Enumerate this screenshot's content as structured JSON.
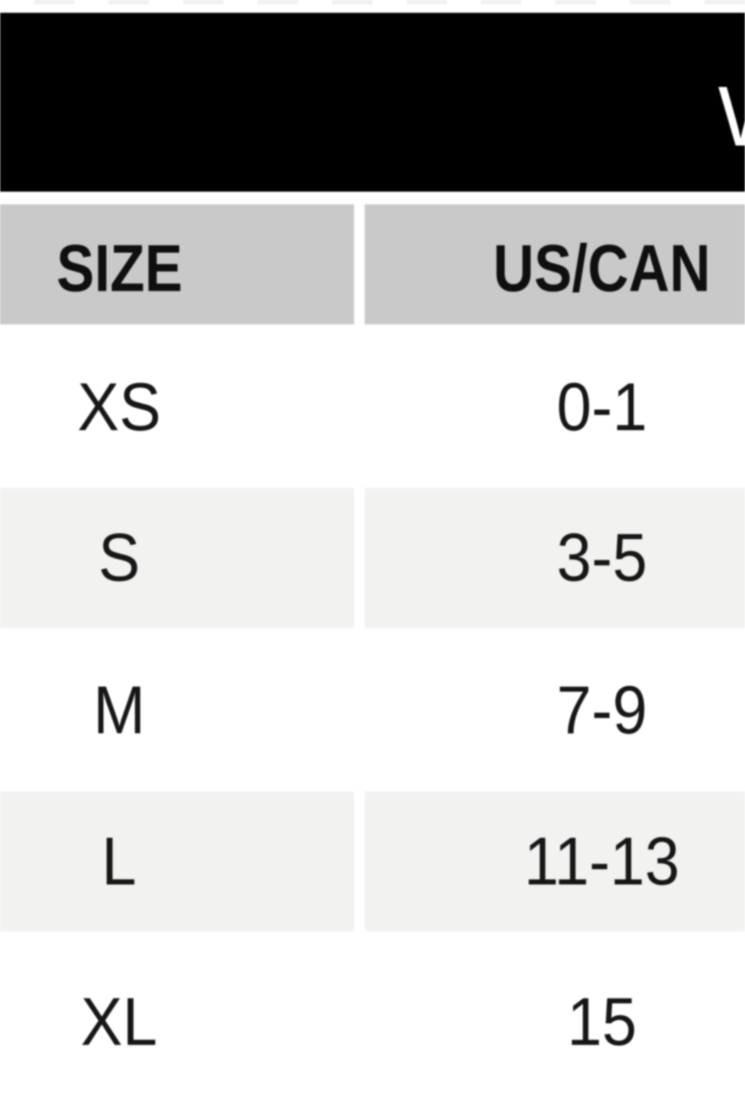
{
  "banner": {
    "partial_title_letter": "W"
  },
  "chart_data": {
    "type": "table",
    "columns": [
      "SIZE",
      "US/CAN"
    ],
    "rows": [
      [
        "XS",
        "0-1"
      ],
      [
        "S",
        "3-5"
      ],
      [
        "M",
        "7-9"
      ],
      [
        "L",
        "11-13"
      ],
      [
        "XL",
        "15"
      ]
    ],
    "layout_hints": {
      "header_style": "gray band below black banner",
      "row_striping": "white / light gray alternating",
      "crop": "table cropped at left and right edges; banner title cut off showing only first letter stroke"
    }
  },
  "colors": {
    "banner_bg": "#000000",
    "banner_text": "#ffffff",
    "header_bg": "#c9c9c9",
    "row_bg": "#ffffff",
    "row_alt_bg": "#f2f2f1",
    "text": "#161616"
  }
}
